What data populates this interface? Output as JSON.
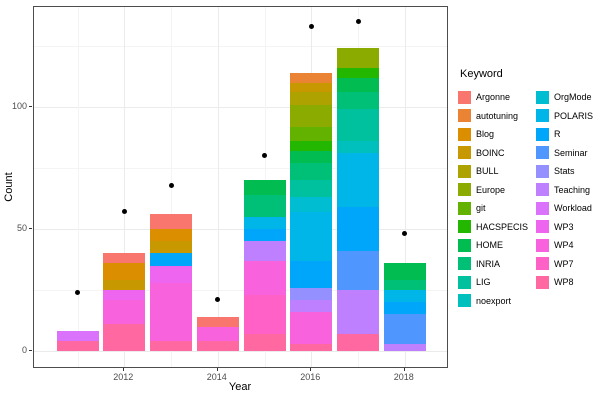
{
  "chart_data": {
    "type": "bar",
    "subtype": "stacked-with-points",
    "title": "",
    "xlabel": "Year",
    "ylabel": "Count",
    "legend_title": "Keyword",
    "x_tick_years_major": [
      2012,
      2014,
      2016,
      2018
    ],
    "x_tick_years_minor": [
      2011,
      2013,
      2015,
      2017
    ],
    "y_ticks_major": [
      0,
      50,
      100
    ],
    "y_ticks_minor": [
      25,
      75,
      125
    ],
    "ylim": [
      0,
      141
    ],
    "grid": "on",
    "legend_position": "right",
    "keywords": [
      {
        "name": "Argonne",
        "color": "#F8766D"
      },
      {
        "name": "autotuning",
        "color": "#EB8335"
      },
      {
        "name": "Blog",
        "color": "#DB8E00"
      },
      {
        "name": "BOINC",
        "color": "#C79800"
      },
      {
        "name": "BULL",
        "color": "#AEA200"
      },
      {
        "name": "Europe",
        "color": "#8CAB00"
      },
      {
        "name": "git",
        "color": "#64B200"
      },
      {
        "name": "HACSPECIS",
        "color": "#24B700"
      },
      {
        "name": "HOME",
        "color": "#00BC51"
      },
      {
        "name": "INRIA",
        "color": "#00C078"
      },
      {
        "name": "LIG",
        "color": "#00C19E"
      },
      {
        "name": "noexport",
        "color": "#00C0BE"
      },
      {
        "name": "OrgMode",
        "color": "#00BDD2"
      },
      {
        "name": "POLARIS",
        "color": "#00B5E8"
      },
      {
        "name": "R",
        "color": "#00A6FA"
      },
      {
        "name": "Seminar",
        "color": "#4F96FF"
      },
      {
        "name": "Stats",
        "color": "#9590FF"
      },
      {
        "name": "Teaching",
        "color": "#BF80FF"
      },
      {
        "name": "Workload",
        "color": "#DB72FB"
      },
      {
        "name": "WP3",
        "color": "#EE65F0"
      },
      {
        "name": "WP4",
        "color": "#F962DD"
      },
      {
        "name": "WP7",
        "color": "#FF61C7"
      },
      {
        "name": "WP8",
        "color": "#FF68A1"
      }
    ],
    "bars": [
      {
        "year": 2011,
        "total": 8,
        "segments_bottom_to_top": [
          {
            "keyword": "WP8",
            "value": 4
          },
          {
            "keyword": "Workload",
            "value": 4
          }
        ]
      },
      {
        "year": 2012,
        "total": 40,
        "segments_bottom_to_top": [
          {
            "keyword": "WP8",
            "value": 11
          },
          {
            "keyword": "WP4",
            "value": 10
          },
          {
            "keyword": "WP3",
            "value": 4
          },
          {
            "keyword": "BOINC",
            "value": 4
          },
          {
            "keyword": "Blog",
            "value": 7
          },
          {
            "keyword": "Argonne",
            "value": 4
          }
        ]
      },
      {
        "year": 2013,
        "total": 56,
        "segments_bottom_to_top": [
          {
            "keyword": "WP8",
            "value": 4
          },
          {
            "keyword": "WP4",
            "value": 24
          },
          {
            "keyword": "WP3",
            "value": 7
          },
          {
            "keyword": "R",
            "value": 5
          },
          {
            "keyword": "BOINC",
            "value": 5
          },
          {
            "keyword": "Blog",
            "value": 5
          },
          {
            "keyword": "Argonne",
            "value": 6
          }
        ]
      },
      {
        "year": 2014,
        "total": 14,
        "segments_bottom_to_top": [
          {
            "keyword": "WP8",
            "value": 4
          },
          {
            "keyword": "WP4",
            "value": 6
          },
          {
            "keyword": "Argonne",
            "value": 4
          }
        ]
      },
      {
        "year": 2015,
        "total": 70,
        "segments_bottom_to_top": [
          {
            "keyword": "WP8",
            "value": 7
          },
          {
            "keyword": "WP7",
            "value": 16
          },
          {
            "keyword": "WP4",
            "value": 14
          },
          {
            "keyword": "Teaching",
            "value": 8
          },
          {
            "keyword": "R",
            "value": 5
          },
          {
            "keyword": "POLARIS",
            "value": 5
          },
          {
            "keyword": "INRIA",
            "value": 9
          },
          {
            "keyword": "HOME",
            "value": 6
          }
        ]
      },
      {
        "year": 2016,
        "total": 114,
        "segments_bottom_to_top": [
          {
            "keyword": "WP8",
            "value": 3
          },
          {
            "keyword": "WP4",
            "value": 13
          },
          {
            "keyword": "Teaching",
            "value": 5
          },
          {
            "keyword": "Stats",
            "value": 5
          },
          {
            "keyword": "R",
            "value": 11
          },
          {
            "keyword": "POLARIS",
            "value": 20
          },
          {
            "keyword": "OrgMode",
            "value": 6
          },
          {
            "keyword": "LIG",
            "value": 7
          },
          {
            "keyword": "INRIA",
            "value": 7
          },
          {
            "keyword": "HOME",
            "value": 5
          },
          {
            "keyword": "HACSPECIS",
            "value": 4
          },
          {
            "keyword": "git",
            "value": 6
          },
          {
            "keyword": "Europe",
            "value": 9
          },
          {
            "keyword": "BULL",
            "value": 5
          },
          {
            "keyword": "BOINC",
            "value": 4
          },
          {
            "keyword": "autotuning",
            "value": 4
          }
        ]
      },
      {
        "year": 2017,
        "total": 124,
        "segments_bottom_to_top": [
          {
            "keyword": "WP8",
            "value": 7
          },
          {
            "keyword": "Teaching",
            "value": 18
          },
          {
            "keyword": "Seminar",
            "value": 16
          },
          {
            "keyword": "R",
            "value": 18
          },
          {
            "keyword": "POLARIS",
            "value": 22
          },
          {
            "keyword": "noexport",
            "value": 5
          },
          {
            "keyword": "LIG",
            "value": 13
          },
          {
            "keyword": "INRIA",
            "value": 7
          },
          {
            "keyword": "HOME",
            "value": 6
          },
          {
            "keyword": "HACSPECIS",
            "value": 4
          },
          {
            "keyword": "Europe",
            "value": 8
          }
        ]
      },
      {
        "year": 2018,
        "total": 36,
        "segments_bottom_to_top": [
          {
            "keyword": "Teaching",
            "value": 3
          },
          {
            "keyword": "Seminar",
            "value": 12
          },
          {
            "keyword": "R",
            "value": 5
          },
          {
            "keyword": "POLARIS",
            "value": 5
          },
          {
            "keyword": "INRIA",
            "value": 4
          },
          {
            "keyword": "HOME",
            "value": 7
          }
        ]
      }
    ],
    "points": [
      {
        "year": 2011,
        "count": 24
      },
      {
        "year": 2012,
        "count": 57
      },
      {
        "year": 2013,
        "count": 68
      },
      {
        "year": 2014,
        "count": 21
      },
      {
        "year": 2015,
        "count": 80
      },
      {
        "year": 2016,
        "count": 133
      },
      {
        "year": 2017,
        "count": 135
      },
      {
        "year": 2018,
        "count": 48
      }
    ]
  },
  "colors": {
    "panel_border": "#4d4d4d",
    "grid_major": "#ebebeb",
    "grid_minor": "#f4f4f4",
    "tick_text": "#4d4d4d",
    "point": "#000000"
  }
}
